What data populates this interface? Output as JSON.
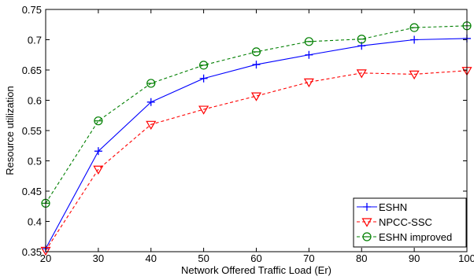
{
  "chart_data": {
    "type": "line",
    "title": "",
    "xlabel": "Network Offered Traffic Load (Er)",
    "ylabel": "Resource utilization",
    "x": [
      20,
      30,
      40,
      50,
      60,
      70,
      80,
      90,
      100
    ],
    "xlim": [
      20,
      100
    ],
    "ylim": [
      0.35,
      0.75
    ],
    "xticks": [
      "20",
      "30",
      "40",
      "50",
      "60",
      "70",
      "80",
      "90",
      "100"
    ],
    "yticks": [
      "0.35",
      "0.4",
      "0.45",
      "0.5",
      "0.55",
      "0.6",
      "0.65",
      "0.7",
      "0.75"
    ],
    "grid": false,
    "legend_position": "bottom-right",
    "series": [
      {
        "name": "ESHN",
        "color": "#0000ff",
        "line": "solid",
        "marker": "plus",
        "values": [
          0.355,
          0.516,
          0.597,
          0.636,
          0.659,
          0.675,
          0.69,
          0.7,
          0.702
        ]
      },
      {
        "name": "NPCC-SSC",
        "color": "#ff0000",
        "line": "dashed",
        "marker": "triangle-down",
        "values": [
          0.352,
          0.486,
          0.56,
          0.585,
          0.607,
          0.63,
          0.645,
          0.643,
          0.649
        ]
      },
      {
        "name": "ESHN improved",
        "color": "#007f00",
        "line": "dashed",
        "marker": "circle",
        "values": [
          0.43,
          0.566,
          0.628,
          0.658,
          0.68,
          0.697,
          0.701,
          0.72,
          0.723
        ]
      }
    ]
  }
}
